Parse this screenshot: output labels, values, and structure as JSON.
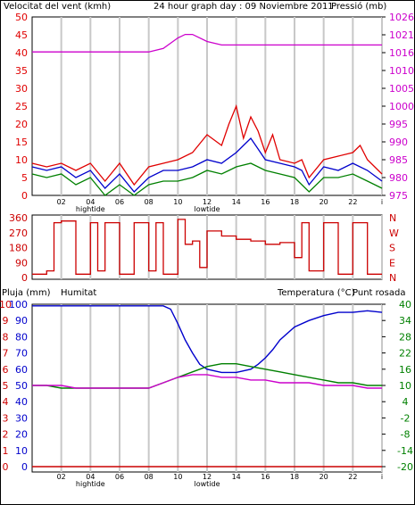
{
  "colors": {
    "wind": "#e00000",
    "wind_avg": "#0000cc",
    "gust_alt": "#008000",
    "pressure": "#cc00cc",
    "dir": "#cc0000",
    "humidity": "#0000cc",
    "temperature": "#008000",
    "dewpoint": "#cc00cc",
    "rain": "#cc0000",
    "grid": "#c8c8c8"
  },
  "chart_data": [
    {
      "type": "line",
      "title": "24 hour graph day : 09 Noviembre 2011",
      "left_label": "Velocitat del vent (kmh)",
      "right_label": "Pressió (mb)",
      "x_ticks": [
        "02",
        "04",
        "06",
        "08",
        "10",
        "12",
        "14",
        "16",
        "18",
        "20",
        "22",
        "i"
      ],
      "x_annotations": [
        {
          "at": "04",
          "label": "hightide"
        },
        {
          "at": "12",
          "label": "lowtide"
        }
      ],
      "y_left": {
        "lim": [
          0,
          50
        ],
        "ticks": [
          "0",
          "5",
          "10",
          "15",
          "20",
          "25",
          "30",
          "35",
          "40",
          "45",
          "50"
        ]
      },
      "y_right": {
        "lim": [
          975,
          1026
        ],
        "ticks": [
          "975",
          "980",
          "985",
          "990",
          "995",
          "1000",
          "1005",
          "1010",
          "1016",
          "1021",
          "1026"
        ]
      },
      "series": [
        {
          "key": "wind_max",
          "x": [
            0,
            1,
            2,
            3,
            4,
            5,
            6,
            7,
            8,
            9,
            10,
            11,
            12,
            13,
            13.5,
            14,
            14.5,
            15,
            15.5,
            16,
            16.5,
            17,
            18,
            18.5,
            19,
            20,
            21,
            22,
            22.5,
            23,
            24
          ],
          "y": [
            9,
            8,
            9,
            7,
            9,
            4,
            9,
            3,
            8,
            9,
            10,
            12,
            17,
            14,
            20,
            25,
            16,
            22,
            18,
            12,
            17,
            10,
            9,
            10,
            5,
            10,
            11,
            12,
            14,
            10,
            6
          ]
        },
        {
          "key": "wind_avg",
          "x": [
            0,
            1,
            2,
            3,
            4,
            5,
            6,
            7,
            8,
            9,
            10,
            11,
            12,
            13,
            14,
            14.5,
            15,
            15.5,
            16,
            17,
            18,
            18.5,
            19,
            20,
            21,
            22,
            23,
            24
          ],
          "y": [
            8,
            7,
            8,
            5,
            7,
            2,
            6,
            1,
            5,
            7,
            7,
            8,
            10,
            9,
            12,
            14,
            16,
            13,
            10,
            9,
            8,
            7,
            3,
            8,
            7,
            9,
            7,
            4
          ]
        },
        {
          "key": "wind_min",
          "x": [
            0,
            1,
            2,
            3,
            4,
            5,
            6,
            7,
            8,
            9,
            10,
            11,
            12,
            13,
            14,
            15,
            16,
            17,
            18,
            19,
            20,
            21,
            22,
            23,
            24
          ],
          "y": [
            6,
            5,
            6,
            3,
            5,
            0,
            3,
            0,
            3,
            4,
            4,
            5,
            7,
            6,
            8,
            9,
            7,
            6,
            5,
            1,
            5,
            5,
            6,
            4,
            2
          ]
        },
        {
          "key": "pressure",
          "x": [
            0,
            1,
            2,
            3,
            4,
            5,
            6,
            7,
            8,
            9,
            10,
            10.5,
            11,
            12,
            13,
            14,
            15,
            16,
            17,
            18,
            19,
            20,
            21,
            22,
            23,
            24
          ],
          "y": [
            1016,
            1016,
            1016,
            1016,
            1016,
            1016,
            1016,
            1016,
            1016,
            1017,
            1020,
            1021,
            1021,
            1019,
            1018,
            1018,
            1018,
            1018,
            1018,
            1018,
            1018,
            1018,
            1018,
            1018,
            1018,
            1018
          ]
        }
      ]
    },
    {
      "type": "line",
      "title": "",
      "y_left": {
        "lim": [
          0,
          360
        ],
        "ticks": [
          "0",
          "90",
          "180",
          "270",
          "360"
        ]
      },
      "y_right_labels": [
        "N",
        "W",
        "S",
        "E",
        "N"
      ],
      "series": [
        {
          "key": "wind_dir",
          "x": [
            0,
            1,
            1.5,
            2,
            3,
            4,
            4.5,
            5,
            6,
            7,
            8,
            8.5,
            9,
            10,
            10.5,
            11,
            11.5,
            12,
            13,
            14,
            15,
            16,
            17,
            18,
            18.5,
            19,
            20,
            21,
            22,
            23,
            24
          ],
          "y": [
            20,
            40,
            330,
            340,
            20,
            330,
            40,
            330,
            20,
            330,
            40,
            330,
            20,
            350,
            200,
            220,
            60,
            280,
            250,
            230,
            220,
            200,
            210,
            120,
            330,
            40,
            330,
            20,
            330,
            20,
            20
          ]
        }
      ]
    },
    {
      "type": "line",
      "title": "",
      "left_labels": [
        "Pluja (mm)",
        "Humitat"
      ],
      "right_labels": [
        "Temperatura (°C)",
        "Punt rosada"
      ],
      "x_ticks": [
        "02",
        "04",
        "06",
        "08",
        "10",
        "12",
        "14",
        "16",
        "18",
        "20",
        "22",
        "i"
      ],
      "x_annotations": [
        {
          "at": "04",
          "label": "hightide"
        },
        {
          "at": "12",
          "label": "lowtide"
        }
      ],
      "y_rain_ticks": [
        "0",
        "1",
        "2",
        "3",
        "4",
        "5",
        "6",
        "7",
        "8",
        "9",
        "10"
      ],
      "y_hum": {
        "lim": [
          0,
          100
        ],
        "ticks": [
          "0",
          "10",
          "20",
          "30",
          "40",
          "50",
          "60",
          "70",
          "80",
          "90",
          "100"
        ]
      },
      "y_temp": {
        "lim": [
          -20,
          40
        ],
        "ticks": [
          "-20",
          "-14",
          "-8",
          "-2",
          "4",
          "10",
          "16",
          "22",
          "28",
          "34",
          "40"
        ]
      },
      "series": [
        {
          "key": "humidity",
          "x": [
            0,
            1,
            2,
            3,
            4,
            5,
            6,
            7,
            8,
            9,
            9.5,
            10,
            10.5,
            11,
            11.5,
            12,
            13,
            14,
            15,
            15.5,
            16,
            16.5,
            17,
            18,
            19,
            20,
            21,
            22,
            23,
            24
          ],
          "y": [
            99,
            99,
            99,
            99,
            99,
            99,
            99,
            99,
            99,
            99,
            97,
            88,
            78,
            70,
            63,
            60,
            58,
            58,
            60,
            63,
            67,
            72,
            78,
            86,
            90,
            93,
            95,
            95,
            96,
            95
          ]
        },
        {
          "key": "temperature",
          "x": [
            0,
            1,
            2,
            3,
            4,
            5,
            6,
            7,
            8,
            9,
            10,
            11,
            12,
            13,
            14,
            15,
            16,
            17,
            18,
            19,
            20,
            21,
            22,
            23,
            24
          ],
          "y": [
            10,
            10,
            9,
            9,
            9,
            9,
            9,
            9,
            9,
            11,
            13,
            15,
            17,
            18,
            18,
            17,
            16,
            15,
            14,
            13,
            12,
            11,
            11,
            10,
            10
          ]
        },
        {
          "key": "dewpoint",
          "x": [
            0,
            1,
            2,
            3,
            4,
            5,
            6,
            7,
            8,
            9,
            10,
            11,
            12,
            13,
            14,
            15,
            16,
            17,
            18,
            19,
            20,
            21,
            22,
            23,
            24
          ],
          "y": [
            10,
            10,
            10,
            9,
            9,
            9,
            9,
            9,
            9,
            11,
            13,
            14,
            14,
            13,
            13,
            12,
            12,
            11,
            11,
            11,
            10,
            10,
            10,
            9,
            9
          ]
        },
        {
          "key": "rain",
          "x": [
            0,
            24
          ],
          "y": [
            0,
            0
          ]
        }
      ]
    }
  ]
}
